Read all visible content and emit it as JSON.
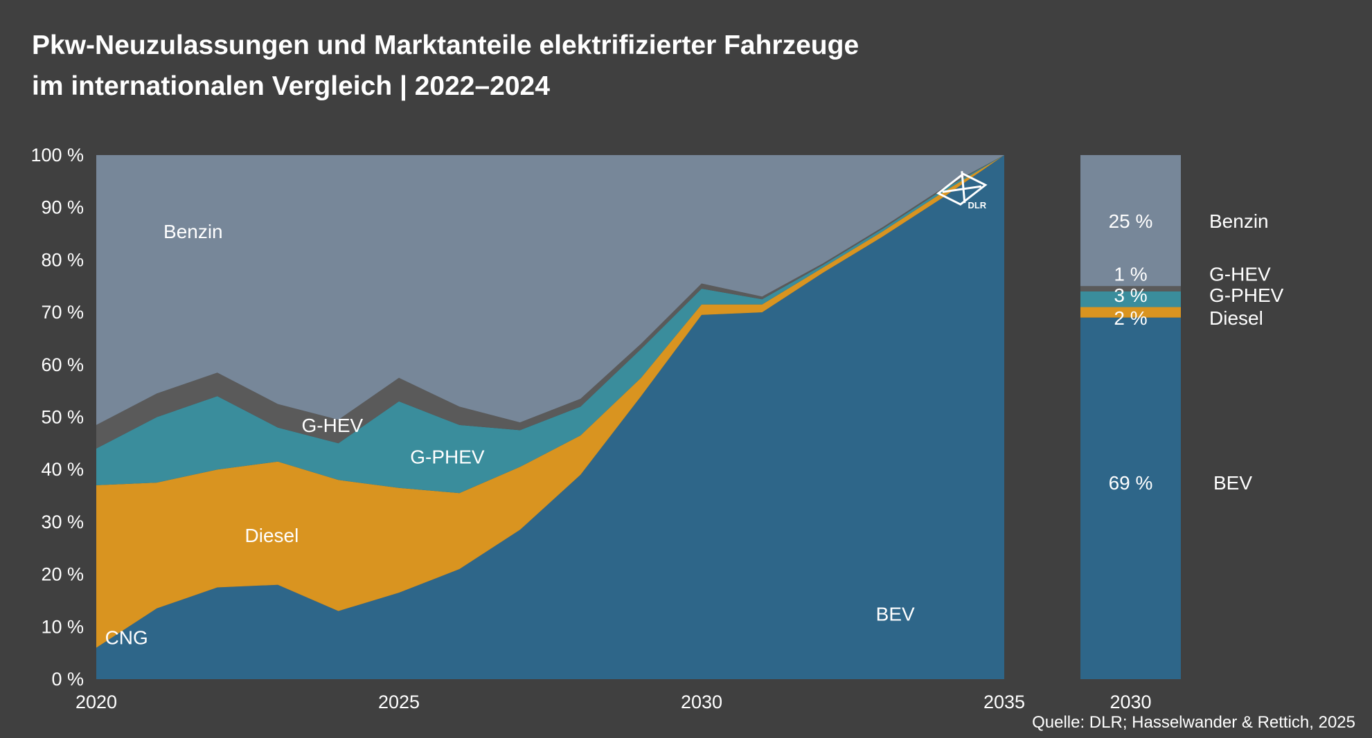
{
  "title": {
    "line1": "Pkw-Neuzulassungen und Marktanteile elektrifizierter Fahrzeuge",
    "line2": "im internationalen Vergleich | 2022–2024"
  },
  "source": "Quelle: DLR; Hasselwander & Rettich, 2025",
  "logo_text": "DLR",
  "colors": {
    "background": "#404040",
    "BEV": "#2e6689",
    "CNG": "#c9c9c9",
    "Diesel": "#d99420",
    "G-PHEV": "#3a8d9c",
    "G-HEV": "#5a5a5a",
    "Benzin": "#778799"
  },
  "chart_data": [
    {
      "type": "area",
      "stacked": true,
      "x": [
        2020,
        2021,
        2022,
        2023,
        2024,
        2025,
        2026,
        2027,
        2028,
        2029,
        2030,
        2031,
        2032,
        2033,
        2034,
        2035
      ],
      "xticks": [
        "2020",
        "2025",
        "2030",
        "2035"
      ],
      "xlim": [
        2020,
        2035
      ],
      "ylim": [
        0,
        100
      ],
      "yticks": [
        "0 %",
        "10 %",
        "20 %",
        "30 %",
        "40 %",
        "50 %",
        "60 %",
        "70 %",
        "80 %",
        "90 %",
        "100 %"
      ],
      "series": [
        {
          "name": "BEV",
          "values": [
            6,
            13.5,
            17.5,
            18,
            13,
            16.5,
            21,
            28.5,
            39,
            54,
            69.5,
            70,
            77.5,
            84.5,
            92,
            100
          ]
        },
        {
          "name": "CNG",
          "values": [
            0,
            0,
            0,
            0,
            0,
            0,
            0,
            0,
            0,
            0,
            0,
            0,
            0,
            0,
            0,
            0
          ]
        },
        {
          "name": "Diesel",
          "values": [
            31,
            24,
            22.5,
            23.5,
            25,
            20,
            14.5,
            12,
            7.5,
            3.5,
            2,
            1.5,
            1,
            1,
            1,
            0
          ]
        },
        {
          "name": "G-PHEV",
          "values": [
            7,
            12.5,
            14,
            6.5,
            7,
            16.5,
            13,
            7,
            5.5,
            5.5,
            3,
            1,
            0.5,
            0.5,
            0.5,
            0
          ]
        },
        {
          "name": "G-HEV",
          "values": [
            4.5,
            4.5,
            4.5,
            4.5,
            4.5,
            4.5,
            3.5,
            1.5,
            1.5,
            1,
            1,
            0.5,
            0.3,
            0.3,
            0.3,
            0
          ]
        },
        {
          "name": "Benzin",
          "values": [
            51.5,
            45.5,
            41.5,
            47.5,
            50.5,
            42.5,
            48,
            51,
            46.5,
            36,
            24.5,
            27,
            20.7,
            13.7,
            6.2,
            0
          ]
        }
      ],
      "labels": [
        "Benzin",
        "G-HEV",
        "G-PHEV",
        "Diesel",
        "CNG",
        "BEV"
      ]
    },
    {
      "type": "bar",
      "stacked": true,
      "categories": [
        "2030"
      ],
      "series": [
        {
          "name": "BEV",
          "value": 69,
          "label": "69 %"
        },
        {
          "name": "Diesel",
          "value": 2,
          "label": "2 %"
        },
        {
          "name": "G-PHEV",
          "value": 3,
          "label": "3 %"
        },
        {
          "name": "G-HEV",
          "value": 1,
          "label": "1 %"
        },
        {
          "name": "Benzin",
          "value": 25,
          "label": "25 %"
        }
      ],
      "legend": [
        "Benzin",
        "G-HEV",
        "G-PHEV",
        "Diesel",
        "BEV"
      ],
      "ylim": [
        0,
        100
      ]
    }
  ]
}
